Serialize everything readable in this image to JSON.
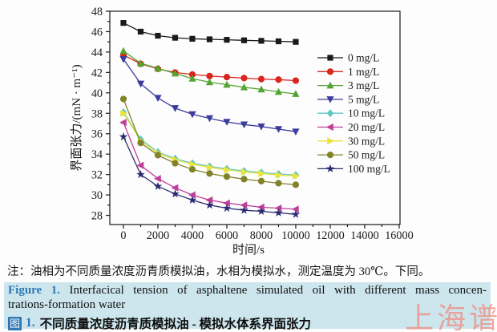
{
  "figure": {
    "note": "注：油相为不同质量浓度沥青质模拟油，水相为模拟水，测定温度为 30℃。下同。",
    "caption_en": {
      "label": "Figure 1.",
      "line1_rest": "Interfacical tension of asphaltene simulated oil with different mass concen-",
      "line2": "trations-formation water"
    },
    "caption_cn": {
      "icon": "图",
      "number": "1.",
      "text": "不同质量浓度沥青质模拟油 - 模拟水体系界面张力"
    },
    "watermark": "上海谱",
    "colors": {
      "caption_bg": "#cde6ee",
      "caption_accent": "#2f78b5",
      "watermark": "#f0887c",
      "axis": "#1a1a1a"
    }
  },
  "chart_data": {
    "type": "line",
    "title": "",
    "xlabel": "时间/s",
    "ylabel": "界面张力/(mN · m⁻¹)",
    "xlim": [
      -790,
      16050
    ],
    "ylim": [
      27.1,
      48
    ],
    "x_ticks": [
      0,
      2000,
      4000,
      6000,
      8000,
      10000,
      12000,
      14000,
      16000
    ],
    "y_ticks": [
      28,
      30,
      32,
      34,
      36,
      38,
      40,
      42,
      44,
      46,
      48
    ],
    "grid": false,
    "legend_position": "inside-right",
    "x": [
      0,
      1000,
      2000,
      3000,
      4000,
      5000,
      6000,
      7000,
      8000,
      9000,
      10000
    ],
    "series": [
      {
        "name": "0 mg/L",
        "marker": "square",
        "color": "#1a1a1a",
        "values": [
          46.85,
          46.0,
          45.6,
          45.4,
          45.3,
          45.25,
          45.2,
          45.15,
          45.1,
          45.05,
          45.0
        ]
      },
      {
        "name": "1 mg/L",
        "marker": "circle",
        "color": "#d9251c",
        "values": [
          43.7,
          42.85,
          42.35,
          42.0,
          41.8,
          41.65,
          41.55,
          41.45,
          41.35,
          41.3,
          41.2
        ]
      },
      {
        "name": "3 mg/L",
        "marker": "triangle-up",
        "color": "#54a431",
        "values": [
          44.1,
          42.9,
          42.4,
          41.9,
          41.4,
          41.05,
          40.8,
          40.55,
          40.35,
          40.1,
          39.9
        ]
      },
      {
        "name": "5 mg/L",
        "marker": "triangle-down",
        "color": "#3c3c9d",
        "values": [
          43.3,
          40.9,
          39.5,
          38.5,
          37.9,
          37.5,
          37.15,
          36.9,
          36.7,
          36.45,
          36.2
        ]
      },
      {
        "name": "10 mg/L",
        "marker": "diamond",
        "color": "#5fc8c5",
        "values": [
          38.1,
          35.45,
          34.2,
          33.55,
          33.1,
          32.8,
          32.55,
          32.35,
          32.2,
          32.05,
          31.95
        ]
      },
      {
        "name": "20 mg/L",
        "marker": "triangle-left",
        "color": "#bf3f99",
        "values": [
          37.1,
          32.9,
          31.6,
          30.7,
          30.0,
          29.5,
          29.2,
          29.0,
          28.8,
          28.7,
          28.6
        ]
      },
      {
        "name": "30 mg/L",
        "marker": "triangle-right",
        "color": "#ece43c",
        "values": [
          38.0,
          35.3,
          34.1,
          33.45,
          33.0,
          32.7,
          32.45,
          32.25,
          32.1,
          31.95,
          31.85
        ]
      },
      {
        "name": "50 mg/L",
        "marker": "circle",
        "color": "#82822b",
        "values": [
          39.4,
          35.1,
          33.9,
          33.1,
          32.5,
          32.1,
          31.8,
          31.55,
          31.35,
          31.15,
          31.0
        ]
      },
      {
        "name": "100 mg/L",
        "marker": "star",
        "color": "#2c2c74",
        "values": [
          35.7,
          32.0,
          30.85,
          30.1,
          29.5,
          29.0,
          28.7,
          28.5,
          28.4,
          28.25,
          28.1
        ]
      }
    ]
  }
}
